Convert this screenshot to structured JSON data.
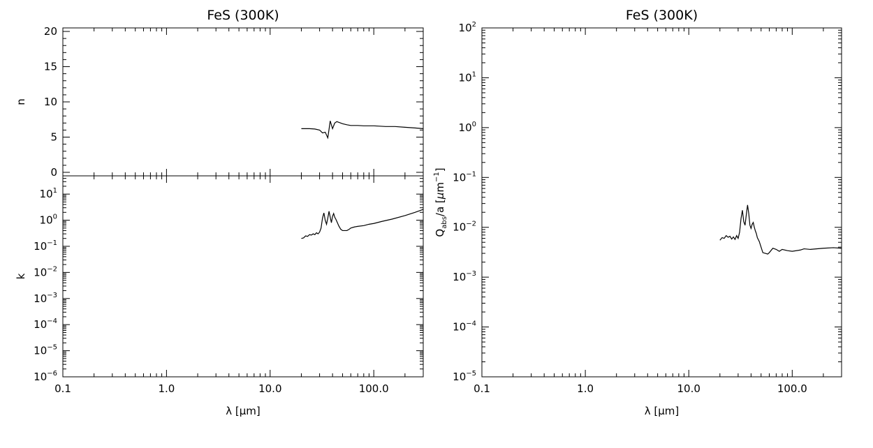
{
  "chart_data": [
    {
      "id": "n",
      "type": "line",
      "title": "FeS (300K)",
      "xlabel": "λ [μm]",
      "ylabel": "n",
      "xscale": "log",
      "yscale": "linear",
      "xlim": [
        0.1,
        300
      ],
      "ylim": [
        -0.5,
        20.5
      ],
      "xticks": [
        {
          "value": 0.1,
          "label": ""
        },
        {
          "value": 1,
          "label": ""
        },
        {
          "value": 10,
          "label": ""
        },
        {
          "value": 100,
          "label": ""
        }
      ],
      "yticks": [
        {
          "value": 0,
          "label": "0"
        },
        {
          "value": 5,
          "label": "5"
        },
        {
          "value": 10,
          "label": "10"
        },
        {
          "value": 15,
          "label": "15"
        },
        {
          "value": 20,
          "label": "20"
        }
      ],
      "series": [
        {
          "x": [
            20,
            24,
            27,
            30,
            32,
            34,
            36,
            37,
            38,
            40,
            42,
            44,
            46,
            50,
            55,
            60,
            70,
            80,
            100,
            130,
            160,
            200,
            250,
            300
          ],
          "y": [
            6.2,
            6.2,
            6.15,
            6.0,
            5.6,
            5.7,
            4.9,
            6.1,
            7.3,
            6.2,
            7.0,
            7.2,
            7.1,
            6.9,
            6.75,
            6.65,
            6.65,
            6.6,
            6.6,
            6.5,
            6.5,
            6.4,
            6.3,
            6.2
          ]
        }
      ]
    },
    {
      "id": "k",
      "type": "line",
      "title": "",
      "xlabel": "λ [μm]",
      "ylabel": "k",
      "xscale": "log",
      "yscale": "log",
      "xlim": [
        0.1,
        300
      ],
      "ylim": [
        1e-06,
        50
      ],
      "xticks": [
        {
          "value": 0.1,
          "label": "0.1"
        },
        {
          "value": 1,
          "label": "1.0"
        },
        {
          "value": 10,
          "label": "10.0"
        },
        {
          "value": 100,
          "label": "100.0"
        }
      ],
      "yticks": [
        {
          "value": 1e-06,
          "base": "10",
          "exp": "−6"
        },
        {
          "value": 1e-05,
          "base": "10",
          "exp": "−5"
        },
        {
          "value": 0.0001,
          "base": "10",
          "exp": "−4"
        },
        {
          "value": 0.001,
          "base": "10",
          "exp": "−3"
        },
        {
          "value": 0.01,
          "base": "10",
          "exp": "−2"
        },
        {
          "value": 0.1,
          "base": "10",
          "exp": "−1"
        },
        {
          "value": 1,
          "base": "10",
          "exp": "0"
        },
        {
          "value": 10,
          "base": "10",
          "exp": "1"
        }
      ],
      "series": [
        {
          "x": [
            20,
            21,
            22,
            23,
            24,
            25,
            26,
            27,
            28,
            29,
            30,
            31,
            32,
            33,
            34,
            35,
            36,
            37,
            38,
            39,
            40,
            41,
            42,
            43,
            44,
            46,
            48,
            50,
            55,
            58,
            60,
            65,
            70,
            80,
            90,
            100,
            120,
            150,
            200,
            250,
            300
          ],
          "y": [
            0.2,
            0.21,
            0.25,
            0.24,
            0.28,
            0.27,
            0.3,
            0.28,
            0.33,
            0.3,
            0.35,
            0.5,
            1.2,
            1.9,
            1.0,
            0.7,
            1.2,
            2.2,
            1.3,
            0.8,
            1.4,
            1.8,
            1.3,
            1.1,
            0.9,
            0.6,
            0.45,
            0.4,
            0.4,
            0.45,
            0.5,
            0.55,
            0.58,
            0.62,
            0.7,
            0.75,
            0.9,
            1.1,
            1.5,
            2.0,
            2.6
          ]
        }
      ]
    },
    {
      "id": "qabs",
      "type": "line",
      "title": "FeS (300K)",
      "xlabel": "λ [μm]",
      "ylabel": {
        "q": "Q",
        "sub": "abs",
        "mid": "/a [",
        "mu": "μ",
        "m": "m",
        "sup": "−1",
        "close": "]"
      },
      "xscale": "log",
      "yscale": "log",
      "xlim": [
        0.1,
        300
      ],
      "ylim": [
        1e-05,
        100
      ],
      "xticks": [
        {
          "value": 0.1,
          "label": "0.1"
        },
        {
          "value": 1,
          "label": "1.0"
        },
        {
          "value": 10,
          "label": "10.0"
        },
        {
          "value": 100,
          "label": "100.0"
        }
      ],
      "yticks": [
        {
          "value": 1e-05,
          "base": "10",
          "exp": "−5"
        },
        {
          "value": 0.0001,
          "base": "10",
          "exp": "−4"
        },
        {
          "value": 0.001,
          "base": "10",
          "exp": "−3"
        },
        {
          "value": 0.01,
          "base": "10",
          "exp": "−2"
        },
        {
          "value": 0.1,
          "base": "10",
          "exp": "−1"
        },
        {
          "value": 1,
          "base": "10",
          "exp": "0"
        },
        {
          "value": 10,
          "base": "10",
          "exp": "1"
        },
        {
          "value": 100,
          "base": "10",
          "exp": "2"
        }
      ],
      "series": [
        {
          "x": [
            20,
            21,
            22,
            23,
            24,
            25,
            26,
            27,
            28,
            29,
            30,
            31,
            32,
            33,
            34,
            35,
            36,
            37,
            38,
            39,
            40,
            41,
            42,
            43,
            44,
            45,
            46,
            48,
            50,
            52,
            55,
            58,
            60,
            65,
            70,
            75,
            80,
            90,
            100,
            120,
            130,
            150,
            200,
            250,
            300
          ],
          "y": [
            0.0055,
            0.0062,
            0.006,
            0.0068,
            0.0063,
            0.0066,
            0.0058,
            0.0064,
            0.0057,
            0.0068,
            0.006,
            0.008,
            0.015,
            0.022,
            0.013,
            0.011,
            0.018,
            0.028,
            0.019,
            0.011,
            0.0095,
            0.0115,
            0.0125,
            0.01,
            0.0085,
            0.0075,
            0.0062,
            0.0052,
            0.004,
            0.0031,
            0.003,
            0.0029,
            0.0031,
            0.0038,
            0.0036,
            0.0033,
            0.0036,
            0.0034,
            0.0033,
            0.0035,
            0.0037,
            0.0036,
            0.0038,
            0.0039,
            0.0038
          ]
        }
      ]
    }
  ]
}
